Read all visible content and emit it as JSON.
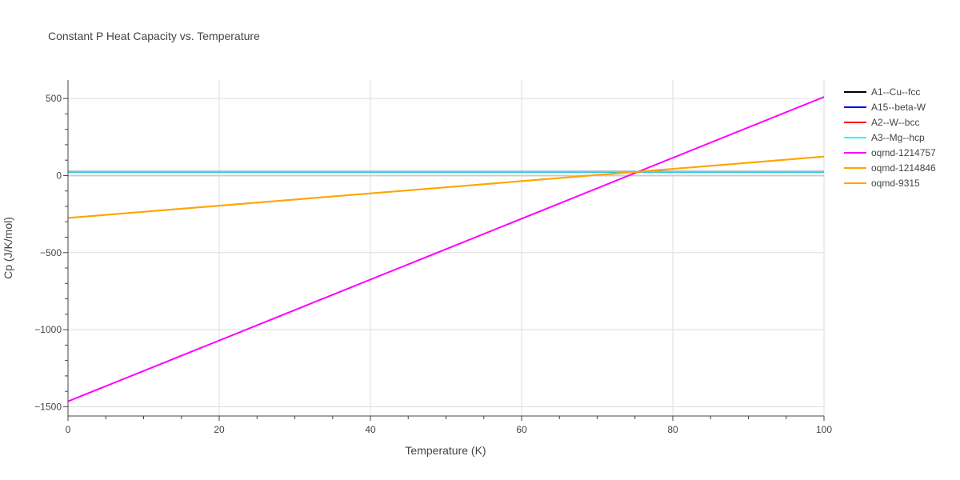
{
  "chart_data": {
    "type": "line",
    "title": "Constant P Heat Capacity vs. Temperature",
    "xlabel": "Temperature (K)",
    "ylabel": "Cp (J/K/mol)",
    "xlim": [
      0,
      100
    ],
    "ylim": [
      -1560,
      620
    ],
    "x_ticks": [
      0,
      20,
      40,
      60,
      80,
      100
    ],
    "x_tick_labels": [
      "0",
      "20",
      "40",
      "60",
      "80",
      "100"
    ],
    "y_ticks": [
      500,
      0,
      -500,
      -1000,
      -1500
    ],
    "y_tick_labels": [
      "500",
      "0",
      "−500",
      "−1000",
      "−1500"
    ],
    "grid": true,
    "legend_position": "top-right",
    "series": [
      {
        "name": "A1--Cu--fcc",
        "color": "#000000",
        "x": [
          0,
          100
        ],
        "y": [
          24.4,
          24.4
        ]
      },
      {
        "name": "A15--beta-W",
        "color": "#0000ff",
        "x": [
          0,
          100
        ],
        "y": [
          24.4,
          24.4
        ]
      },
      {
        "name": "A2--W--bcc",
        "color": "#ff0000",
        "x": [
          0,
          100
        ],
        "y": [
          24.4,
          24.4
        ]
      },
      {
        "name": "A3--Mg--hcp",
        "color": "#00ffff",
        "x": [
          0,
          100
        ],
        "y": [
          24.4,
          24.4
        ]
      },
      {
        "name": "oqmd-1214757",
        "color": "#ff00ff",
        "x": [
          0,
          100
        ],
        "y": [
          -1465,
          510
        ]
      },
      {
        "name": "oqmd-1214846",
        "color": "#ffa500",
        "x": [
          0,
          100
        ],
        "y": [
          -275,
          123
        ]
      },
      {
        "name": "oqmd-9315",
        "color": "#ffa500",
        "x": [
          0,
          100
        ],
        "y": [
          -275,
          123
        ]
      }
    ]
  }
}
